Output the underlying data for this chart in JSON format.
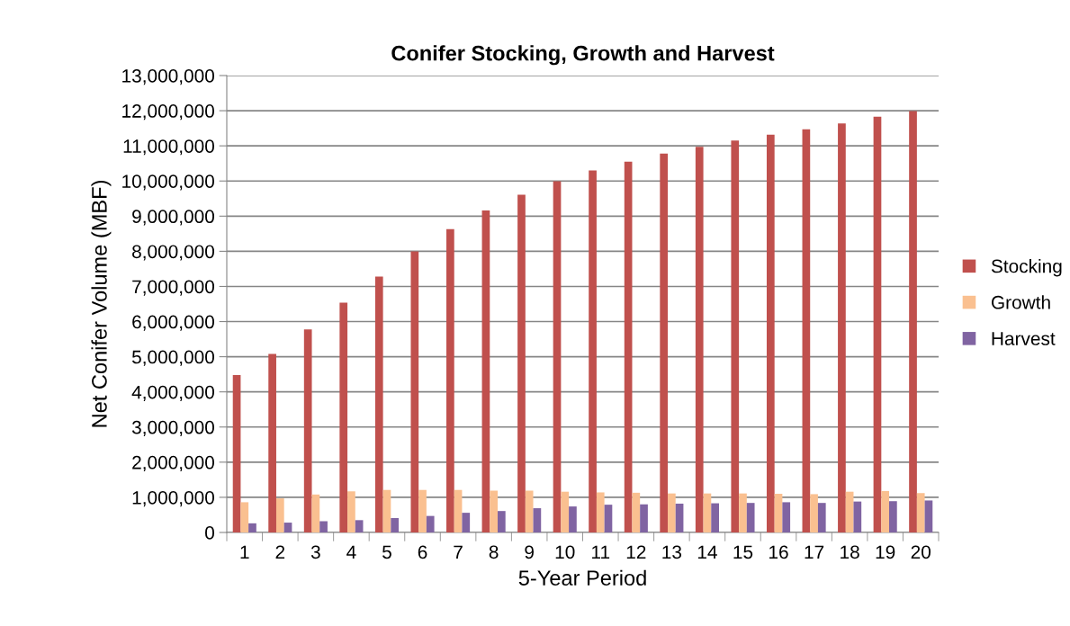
{
  "chart_data": {
    "type": "bar",
    "title": "Conifer Stocking, Growth and Harvest",
    "xlabel": "5-Year Period",
    "ylabel": "Net Conifer Volume (MBF)",
    "categories": [
      "1",
      "2",
      "3",
      "4",
      "5",
      "6",
      "7",
      "8",
      "9",
      "10",
      "11",
      "12",
      "13",
      "14",
      "15",
      "16",
      "17",
      "18",
      "19",
      "20"
    ],
    "series": [
      {
        "name": "Stocking",
        "color": "#c0504d",
        "values": [
          4480000,
          5080000,
          5780000,
          6540000,
          7280000,
          8000000,
          8630000,
          9160000,
          9610000,
          9990000,
          10300000,
          10550000,
          10780000,
          10970000,
          11150000,
          11320000,
          11470000,
          11640000,
          11830000,
          11990000
        ]
      },
      {
        "name": "Growth",
        "color": "#fac090",
        "values": [
          860000,
          970000,
          1080000,
          1170000,
          1210000,
          1210000,
          1210000,
          1190000,
          1190000,
          1160000,
          1140000,
          1130000,
          1110000,
          1110000,
          1110000,
          1100000,
          1090000,
          1160000,
          1180000,
          1120000
        ]
      },
      {
        "name": "Harvest",
        "color": "#8064a2",
        "values": [
          260000,
          280000,
          320000,
          350000,
          410000,
          470000,
          560000,
          610000,
          690000,
          740000,
          790000,
          800000,
          820000,
          830000,
          840000,
          860000,
          840000,
          880000,
          890000,
          910000
        ]
      }
    ],
    "ylim": [
      0,
      13000000
    ],
    "yticks": [
      {
        "value": 0,
        "label": "0"
      },
      {
        "value": 1000000,
        "label": "1,000,000"
      },
      {
        "value": 2000000,
        "label": "2,000,000"
      },
      {
        "value": 3000000,
        "label": "3,000,000"
      },
      {
        "value": 4000000,
        "label": "4,000,000"
      },
      {
        "value": 5000000,
        "label": "5,000,000"
      },
      {
        "value": 6000000,
        "label": "6,000,000"
      },
      {
        "value": 7000000,
        "label": "7,000,000"
      },
      {
        "value": 8000000,
        "label": "8,000,000"
      },
      {
        "value": 9000000,
        "label": "9,000,000"
      },
      {
        "value": 10000000,
        "label": "10,000,000"
      },
      {
        "value": 11000000,
        "label": "11,000,000"
      },
      {
        "value": 12000000,
        "label": "12,000,000"
      },
      {
        "value": 13000000,
        "label": "13,000,000"
      }
    ],
    "grid": "y",
    "legend": "right"
  }
}
